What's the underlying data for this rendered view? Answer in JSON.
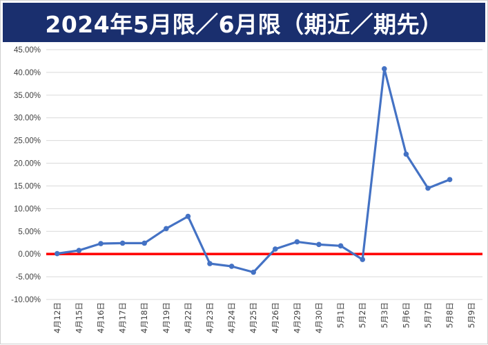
{
  "title": "2024年5月限／6月限（期近／期先）",
  "colors": {
    "title_bg": "#1a2f6e",
    "series": "#4472c4",
    "zero_line": "#ff0000",
    "grid": "#d9d9d9"
  },
  "chart_data": {
    "type": "line",
    "categories": [
      "4月12日",
      "4月15日",
      "4月16日",
      "4月17日",
      "4月18日",
      "4月19日",
      "4月22日",
      "4月23日",
      "4月24日",
      "4月25日",
      "4月26日",
      "4月29日",
      "4月30日",
      "5月1日",
      "5月2日",
      "5月3日",
      "5月6日",
      "5月7日",
      "5月8日",
      "5月9日"
    ],
    "series": [
      {
        "values": [
          0.1,
          0.8,
          2.3,
          2.4,
          2.4,
          5.6,
          8.3,
          -2.1,
          -2.7,
          -4.0,
          1.1,
          2.7,
          2.1,
          1.8,
          -1.2,
          40.8,
          22.0,
          14.5,
          16.4,
          null
        ]
      }
    ],
    "ylim": [
      -10,
      45
    ],
    "y_ticks": [
      "45.00%",
      "40.00%",
      "35.00%",
      "30.00%",
      "25.00%",
      "20.00%",
      "15.00%",
      "10.00%",
      "5.00%",
      "0.00%",
      "-5.00%",
      "-10.00%"
    ],
    "y_tick_values": [
      45,
      40,
      35,
      30,
      25,
      20,
      15,
      10,
      5,
      0,
      -5,
      -10
    ],
    "grid": true,
    "zero_line": true,
    "legend": "none"
  }
}
